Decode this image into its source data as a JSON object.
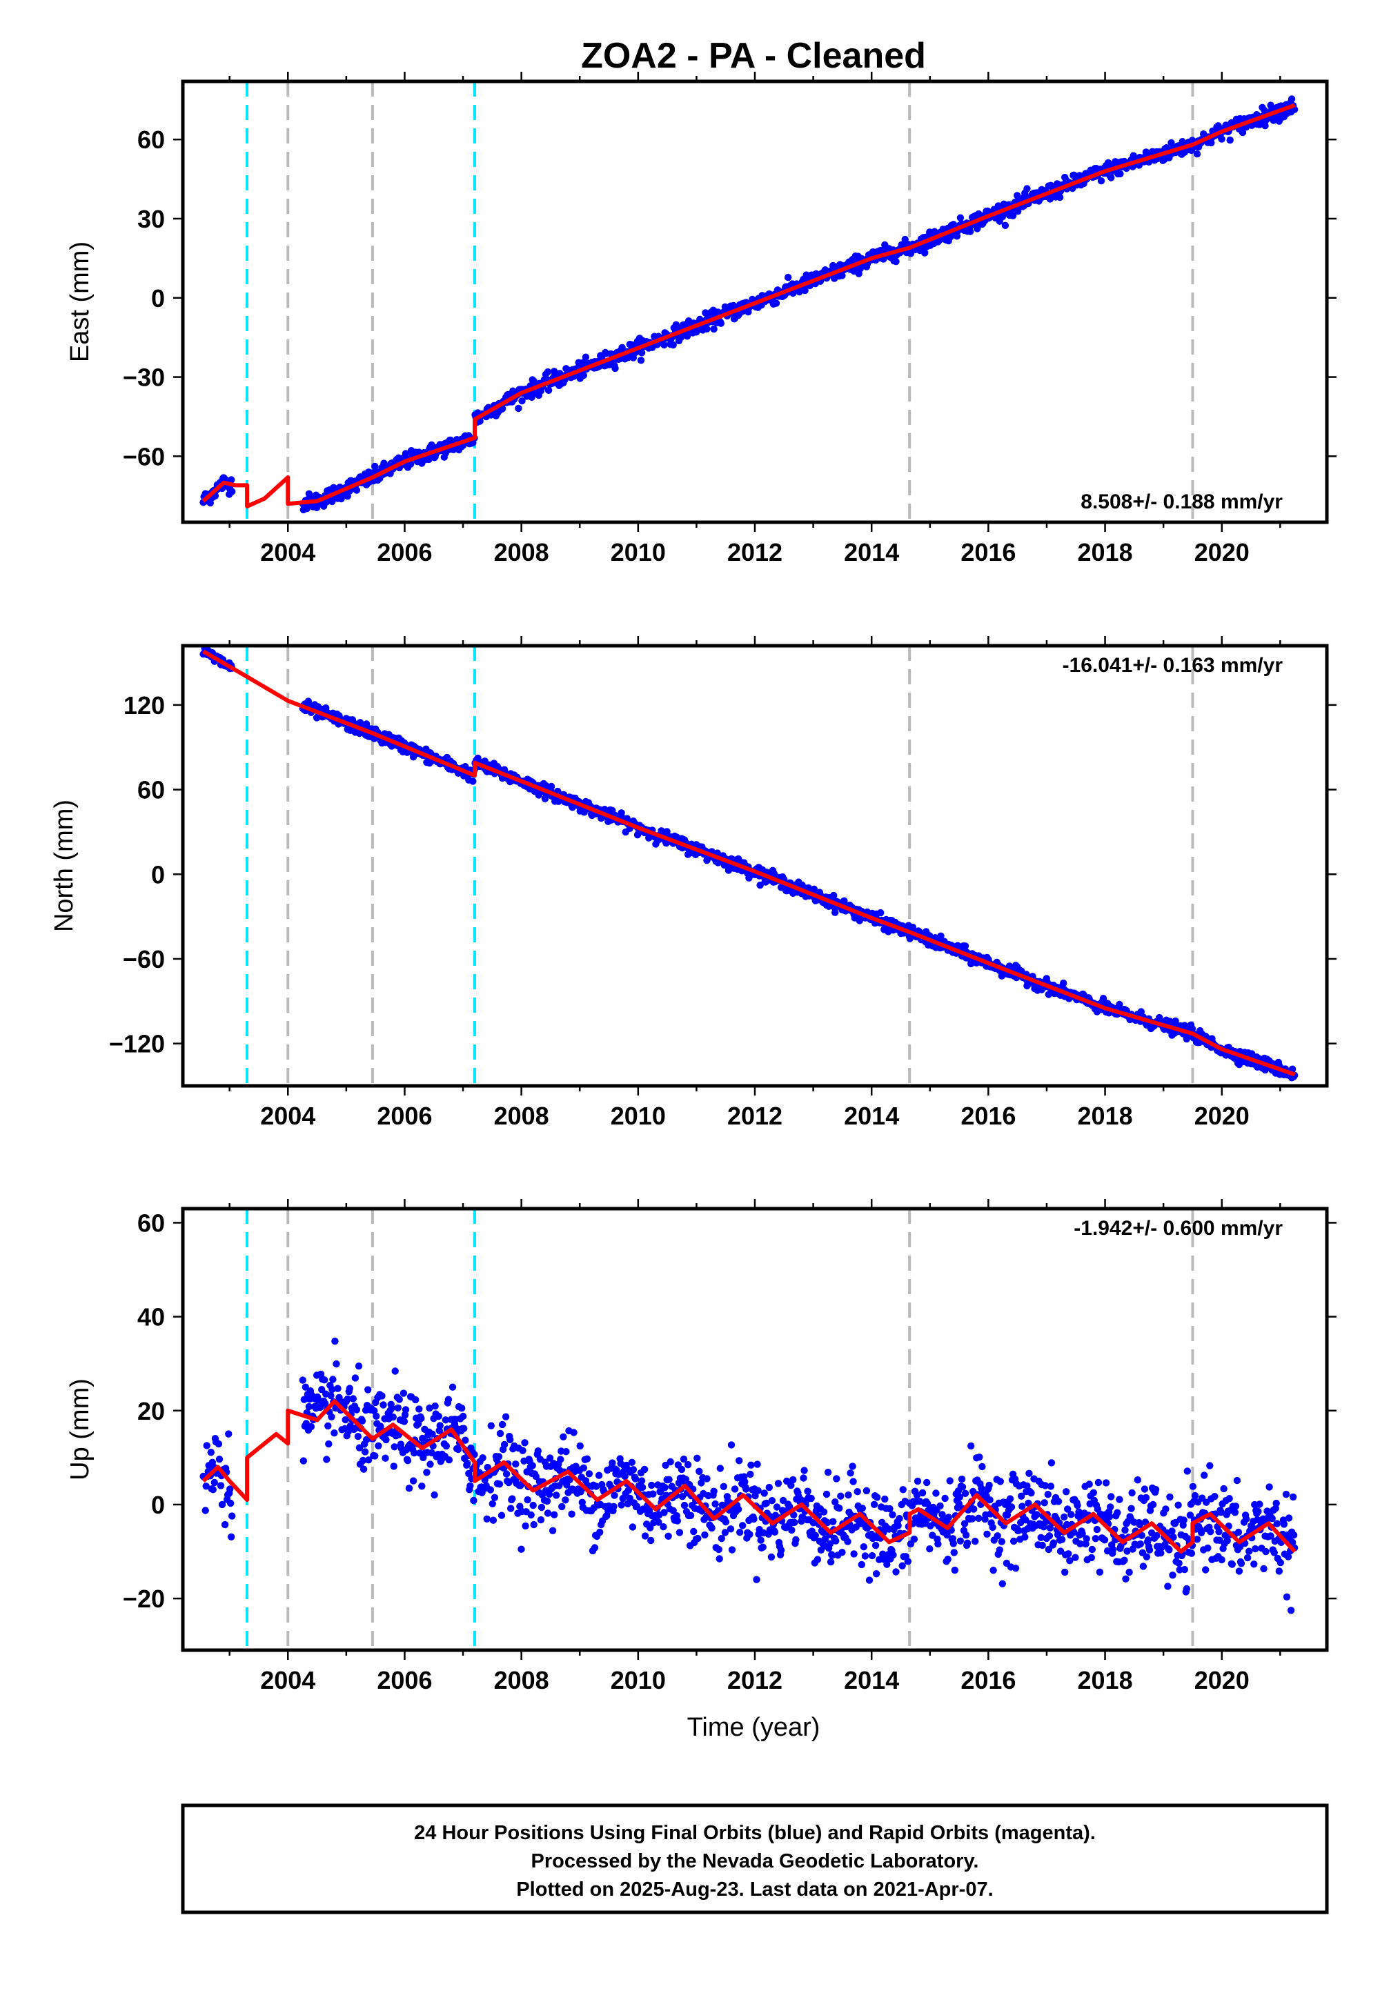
{
  "title": "ZOA2  - PA - Cleaned",
  "xlabel": "Time (year)",
  "colors": {
    "data": "#0000ff",
    "model": "#ff0000",
    "break_equipment": "#00e5ff",
    "break_other": "#bbbbbb"
  },
  "footer": {
    "line1": "24 Hour Positions Using Final Orbits (blue) and Rapid Orbits (magenta).",
    "line2": "Processed by the Nevada Geodetic Laboratory.",
    "line3": "Plotted on 2025-Aug-23. Last data on 2021-Apr-07."
  },
  "chart_data": [
    {
      "type": "scatter",
      "name": "East",
      "ylabel": "East (mm)",
      "rate_label": "8.508+/- 0.188 mm/yr",
      "xlim": [
        2002.2,
        2021.8
      ],
      "ylim": [
        -85,
        82
      ],
      "x_ticks": [
        2004,
        2006,
        2008,
        2010,
        2012,
        2014,
        2016,
        2018,
        2020
      ],
      "y_ticks": [
        -60,
        -30,
        0,
        30,
        60
      ],
      "breaks_equipment": [
        2003.3,
        2007.2
      ],
      "breaks_other": [
        2004.0,
        2005.45,
        2014.65,
        2019.5
      ],
      "series": [
        {
          "name": "model",
          "points": [
            [
              2002.55,
              -77
            ],
            [
              2002.9,
              -70
            ],
            [
              2003.1,
              -71
            ],
            [
              2003.3,
              -71
            ],
            [
              2003.3,
              -79
            ],
            [
              2003.6,
              -76
            ],
            [
              2004.0,
              -68
            ],
            [
              2004.0,
              -78
            ],
            [
              2004.5,
              -77
            ],
            [
              2005.45,
              -68
            ],
            [
              2006.0,
              -62
            ],
            [
              2007.2,
              -53
            ],
            [
              2007.2,
              -46
            ],
            [
              2008.0,
              -36
            ],
            [
              2010.0,
              -19
            ],
            [
              2012.0,
              -2
            ],
            [
              2014.0,
              15
            ],
            [
              2014.65,
              19
            ],
            [
              2016.0,
              31
            ],
            [
              2018.0,
              48
            ],
            [
              2019.5,
              58
            ],
            [
              2020.0,
              63
            ],
            [
              2021.25,
              73
            ]
          ]
        }
      ]
    },
    {
      "type": "scatter",
      "name": "North",
      "ylabel": "North (mm)",
      "rate_label": "-16.041+/- 0.163 mm/yr",
      "xlim": [
        2002.2,
        2021.8
      ],
      "ylim": [
        -150,
        162
      ],
      "x_ticks": [
        2004,
        2006,
        2008,
        2010,
        2012,
        2014,
        2016,
        2018,
        2020
      ],
      "y_ticks": [
        -120,
        -60,
        0,
        60,
        120
      ],
      "breaks_equipment": [
        2003.3,
        2007.2
      ],
      "breaks_other": [
        2004.0,
        2005.45,
        2014.65,
        2019.5
      ],
      "series": [
        {
          "name": "model",
          "points": [
            [
              2002.55,
              158
            ],
            [
              2003.3,
              140
            ],
            [
              2004.0,
              123
            ],
            [
              2005.45,
              100
            ],
            [
              2007.2,
              70
            ],
            [
              2007.2,
              79
            ],
            [
              2008.0,
              66
            ],
            [
              2010.0,
              33
            ],
            [
              2012.0,
              2
            ],
            [
              2014.0,
              -31
            ],
            [
              2014.65,
              -41
            ],
            [
              2016.0,
              -63
            ],
            [
              2018.0,
              -95
            ],
            [
              2019.5,
              -113
            ],
            [
              2020.0,
              -124
            ],
            [
              2021.25,
              -142
            ]
          ]
        }
      ]
    },
    {
      "type": "scatter",
      "name": "Up",
      "ylabel": "Up (mm)",
      "rate_label": "-1.942+/- 0.600 mm/yr",
      "xlim": [
        2002.2,
        2021.8
      ],
      "ylim": [
        -31,
        63
      ],
      "x_ticks": [
        2004,
        2006,
        2008,
        2010,
        2012,
        2014,
        2016,
        2018,
        2020
      ],
      "y_ticks": [
        -20,
        0,
        20,
        40,
        60
      ],
      "breaks_equipment": [
        2003.3,
        2007.2
      ],
      "breaks_other": [
        2004.0,
        2005.45,
        2014.65,
        2019.5
      ],
      "series": [
        {
          "name": "model",
          "points": [
            [
              2002.55,
              5
            ],
            [
              2002.8,
              8
            ],
            [
              2003.0,
              5
            ],
            [
              2003.3,
              1
            ],
            [
              2003.3,
              10
            ],
            [
              2003.6,
              13
            ],
            [
              2003.8,
              15
            ],
            [
              2004.0,
              13
            ],
            [
              2004.0,
              20
            ],
            [
              2004.5,
              18
            ],
            [
              2004.8,
              22
            ],
            [
              2005.45,
              14
            ],
            [
              2005.8,
              17
            ],
            [
              2006.3,
              12
            ],
            [
              2006.8,
              16
            ],
            [
              2007.2,
              9
            ],
            [
              2007.2,
              5
            ],
            [
              2007.7,
              9
            ],
            [
              2008.2,
              3
            ],
            [
              2008.8,
              7
            ],
            [
              2009.3,
              1
            ],
            [
              2009.8,
              5
            ],
            [
              2010.3,
              -1
            ],
            [
              2010.8,
              4
            ],
            [
              2011.3,
              -3
            ],
            [
              2011.8,
              2
            ],
            [
              2012.3,
              -4
            ],
            [
              2012.8,
              0
            ],
            [
              2013.3,
              -6
            ],
            [
              2013.8,
              -2
            ],
            [
              2014.3,
              -8
            ],
            [
              2014.65,
              -6
            ],
            [
              2014.65,
              -2
            ],
            [
              2014.8,
              -1
            ],
            [
              2015.3,
              -5
            ],
            [
              2015.8,
              2
            ],
            [
              2016.3,
              -4
            ],
            [
              2016.8,
              0
            ],
            [
              2017.3,
              -6
            ],
            [
              2017.8,
              -2
            ],
            [
              2018.3,
              -8
            ],
            [
              2018.8,
              -4
            ],
            [
              2019.3,
              -10
            ],
            [
              2019.5,
              -8
            ],
            [
              2019.5,
              -4
            ],
            [
              2019.8,
              -2
            ],
            [
              2020.3,
              -8
            ],
            [
              2020.8,
              -4
            ],
            [
              2021.25,
              -10
            ]
          ]
        }
      ]
    }
  ]
}
